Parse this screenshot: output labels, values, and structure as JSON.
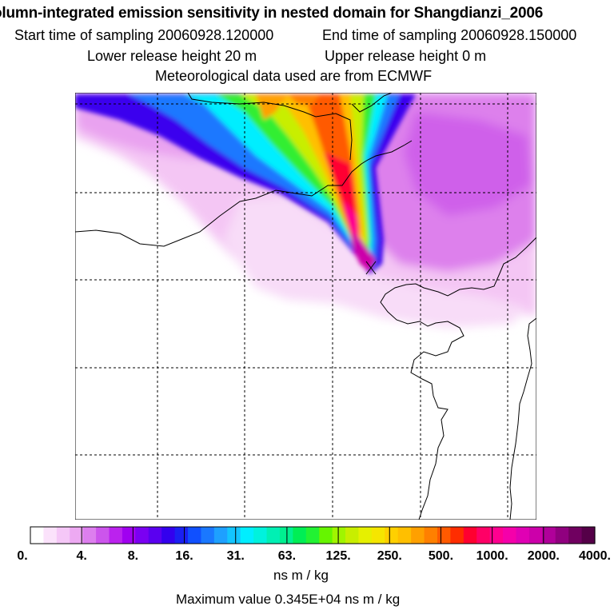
{
  "header": {
    "title": "olumn-integrated emission sensitivity in nested domain for Shangdianzi_2006",
    "start_time": "Start time of sampling 20060928.120000",
    "end_time": "End time of sampling 20060928.150000",
    "lower_release": "Lower release height   20 m",
    "upper_release": "Upper release height    0 m",
    "meteo": "Meteorological data used are from ECMWF"
  },
  "chart_data": {
    "type": "heatmap",
    "title": "olumn-integrated emission sensitivity in nested domain for Shangdianzi_2006",
    "grid": true,
    "colorbar": {
      "labels": [
        "0.",
        "4.",
        "8.",
        "16.",
        "31.",
        "63.",
        "125.",
        "250.",
        "500.",
        "1000.",
        "2000.",
        "4000."
      ],
      "colors": [
        "#ffffff",
        "#fbe2fb",
        "#f5c7f7",
        "#eda9f2",
        "#dd7fee",
        "#cc55ec",
        "#bb22ee",
        "#a000f0",
        "#7a00f2",
        "#5a00f0",
        "#3300ee",
        "#1a20f2",
        "#1050ff",
        "#1a78ff",
        "#1ea0ff",
        "#13c5ff",
        "#00eeff",
        "#00f2dd",
        "#00f0b4",
        "#00f090",
        "#00ee55",
        "#22f233",
        "#66f500",
        "#a0f500",
        "#c8ee00",
        "#e6f000",
        "#f5e600",
        "#ffd000",
        "#ffbf00",
        "#ffa000",
        "#ff8000",
        "#ff5a00",
        "#ff2d00",
        "#ff0030",
        "#ff0066",
        "#ff0090",
        "#f500aa",
        "#e000b4",
        "#cc00aa",
        "#b0009a",
        "#90007f",
        "#700060",
        "#550048"
      ],
      "unit": "ns m / kg"
    },
    "max_value": "Maximum value  0.345E+04 ns m / kg",
    "release_marker": "X"
  }
}
